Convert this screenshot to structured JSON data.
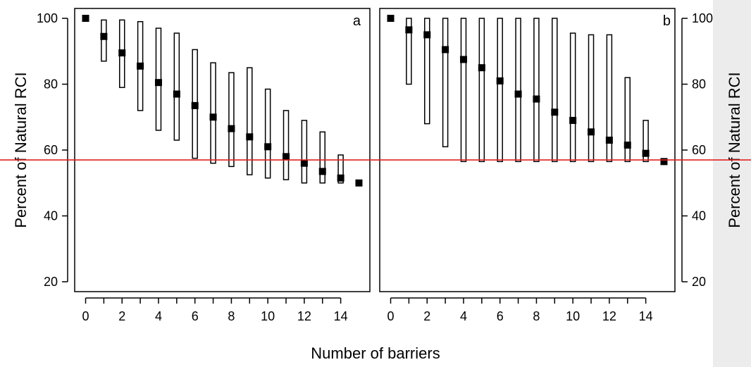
{
  "chart_data": {
    "type": "range-bar",
    "xlabel": "Number of barriers",
    "ylabel": "Percent of Natural RCI",
    "ylim": [
      17,
      103
    ],
    "yticks": [
      20,
      40,
      60,
      80,
      100
    ],
    "reference_line": {
      "y": 57,
      "color": "#e02020"
    },
    "panels": [
      {
        "label": "a",
        "xlim": [
          -0.6,
          15.6
        ],
        "x_ticks_minor": [
          0,
          1,
          2,
          3,
          4,
          5,
          6,
          7,
          8,
          9,
          10,
          11,
          12,
          13,
          14
        ],
        "x_tick_labels": [
          "0",
          "2",
          "4",
          "6",
          "8",
          "10",
          "12",
          "14"
        ],
        "points": [
          {
            "x": 0,
            "y": 100,
            "low": null,
            "high": null
          },
          {
            "x": 1,
            "y": 94.5,
            "low": 87,
            "high": 99.5
          },
          {
            "x": 2,
            "y": 89.5,
            "low": 79,
            "high": 99.5
          },
          {
            "x": 3,
            "y": 85.5,
            "low": 72,
            "high": 99
          },
          {
            "x": 4,
            "y": 80.5,
            "low": 66,
            "high": 97
          },
          {
            "x": 5,
            "y": 77,
            "low": 63,
            "high": 95.5
          },
          {
            "x": 6,
            "y": 73.5,
            "low": 57.5,
            "high": 90.5
          },
          {
            "x": 7,
            "y": 70,
            "low": 56,
            "high": 86.5
          },
          {
            "x": 8,
            "y": 66.5,
            "low": 55,
            "high": 83.5
          },
          {
            "x": 9,
            "y": 64,
            "low": 52.5,
            "high": 85
          },
          {
            "x": 10,
            "y": 61,
            "low": 51.5,
            "high": 78.5
          },
          {
            "x": 11,
            "y": 58,
            "low": 51,
            "high": 72
          },
          {
            "x": 12,
            "y": 56,
            "low": 50,
            "high": 69
          },
          {
            "x": 13,
            "y": 53.5,
            "low": 50,
            "high": 65.5
          },
          {
            "x": 14,
            "y": 51.5,
            "low": 50,
            "high": 58.5
          },
          {
            "x": 15,
            "y": 50,
            "low": null,
            "high": null
          }
        ]
      },
      {
        "label": "b",
        "xlim": [
          -0.6,
          15.6
        ],
        "x_ticks_minor": [
          0,
          1,
          2,
          3,
          4,
          5,
          6,
          7,
          8,
          9,
          10,
          11,
          12,
          13,
          14
        ],
        "x_tick_labels": [
          "0",
          "2",
          "4",
          "6",
          "8",
          "10",
          "12",
          "14"
        ],
        "points": [
          {
            "x": 0,
            "y": 100,
            "low": null,
            "high": null
          },
          {
            "x": 1,
            "y": 96.5,
            "low": 80,
            "high": 100
          },
          {
            "x": 2,
            "y": 95,
            "low": 68,
            "high": 100
          },
          {
            "x": 3,
            "y": 90.5,
            "low": 61,
            "high": 100
          },
          {
            "x": 4,
            "y": 87.5,
            "low": 56.5,
            "high": 100
          },
          {
            "x": 5,
            "y": 85,
            "low": 56.5,
            "high": 100
          },
          {
            "x": 6,
            "y": 81,
            "low": 56.5,
            "high": 100
          },
          {
            "x": 7,
            "y": 77,
            "low": 56.5,
            "high": 100
          },
          {
            "x": 8,
            "y": 75.5,
            "low": 56.5,
            "high": 100
          },
          {
            "x": 9,
            "y": 71.5,
            "low": 56.5,
            "high": 100
          },
          {
            "x": 10,
            "y": 69,
            "low": 56.5,
            "high": 95.5
          },
          {
            "x": 11,
            "y": 65.5,
            "low": 56.5,
            "high": 95
          },
          {
            "x": 12,
            "y": 63,
            "low": 56.5,
            "high": 95
          },
          {
            "x": 13,
            "y": 61.5,
            "low": 56.5,
            "high": 82
          },
          {
            "x": 14,
            "y": 59,
            "low": 56.5,
            "high": 69
          },
          {
            "x": 15,
            "y": 56.5,
            "low": null,
            "high": null
          }
        ]
      }
    ]
  }
}
